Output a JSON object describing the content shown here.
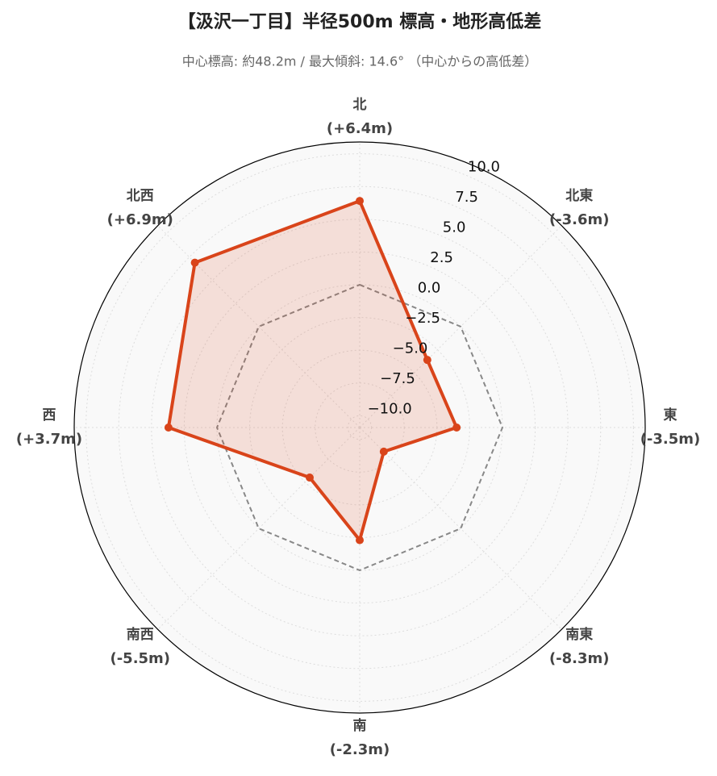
{
  "chart_data": {
    "type": "radar",
    "title": "【汲沢一丁目】半径500m 標高・地形高低差",
    "subtitle": "中心標高: 約48.2m / 最大傾斜: 14.6°  （中心からの高低差）",
    "categories": [
      "北",
      "北東",
      "東",
      "南東",
      "南",
      "南西",
      "西",
      "北西"
    ],
    "values": [
      6.4,
      -3.6,
      -3.5,
      -8.3,
      -2.3,
      -5.5,
      3.7,
      6.9
    ],
    "value_labels": [
      "(+6.4m)",
      "(-3.6m)",
      "(-3.5m)",
      "(-8.3m)",
      "(-2.3m)",
      "(-5.5m)",
      "(+3.7m)",
      "(+6.9m)"
    ],
    "color": "#d9441a",
    "ylim": [
      -10.9,
      10.9
    ],
    "yticks": [
      {
        "value": -10,
        "label": "−10.0"
      },
      {
        "value": -7.5,
        "label": "−7.5"
      },
      {
        "value": -5,
        "label": "−5.0"
      },
      {
        "value": -2.5,
        "label": "−2.5"
      },
      {
        "value": 0,
        "label": "0.0"
      },
      {
        "value": 2.5,
        "label": "2.5"
      },
      {
        "value": 5,
        "label": "5.0"
      },
      {
        "value": 7.5,
        "label": "7.5"
      },
      {
        "value": 10,
        "label": "10.0"
      }
    ],
    "grid": true
  }
}
